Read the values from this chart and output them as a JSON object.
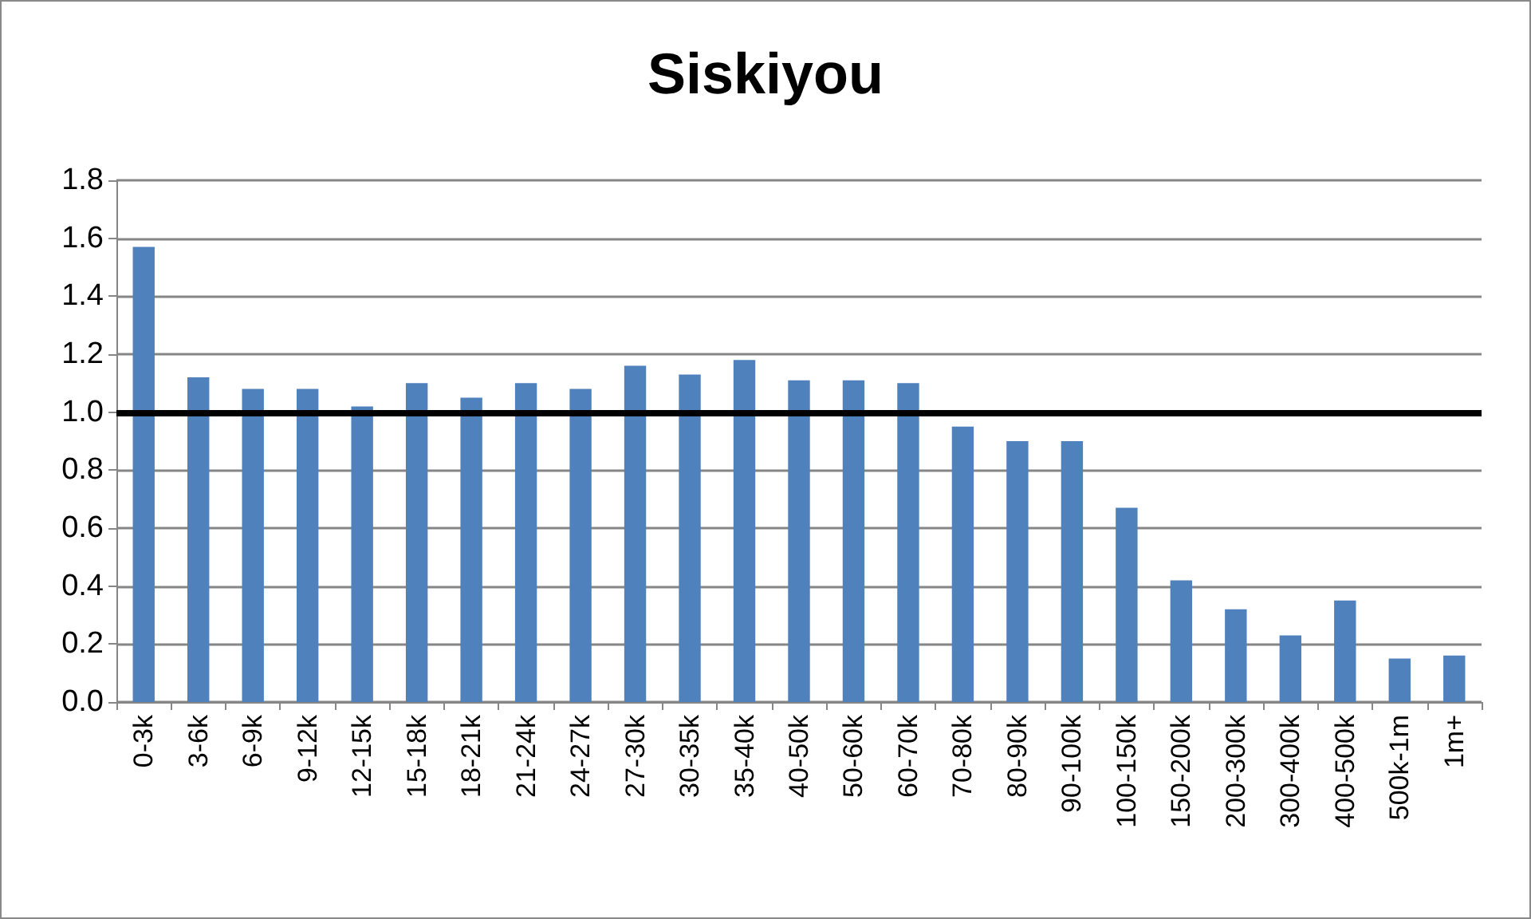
{
  "chart_data": {
    "type": "bar",
    "title": "Siskiyou",
    "categories": [
      "0-3k",
      "3-6k",
      "6-9k",
      "9-12k",
      "12-15k",
      "15-18k",
      "18-21k",
      "21-24k",
      "24-27k",
      "27-30k",
      "30-35k",
      "35-40k",
      "40-50k",
      "50-60k",
      "60-70k",
      "70-80k",
      "80-90k",
      "90-100k",
      "100-150k",
      "150-200k",
      "200-300k",
      "300-400k",
      "400-500k",
      "500k-1m",
      "1m+"
    ],
    "values": [
      1.57,
      1.12,
      1.08,
      1.08,
      1.02,
      1.1,
      1.05,
      1.1,
      1.08,
      1.16,
      1.13,
      1.18,
      1.11,
      1.11,
      1.1,
      0.95,
      0.9,
      0.9,
      0.67,
      0.42,
      0.32,
      0.23,
      0.35,
      0.15,
      0.16
    ],
    "color": "#4f81bd",
    "ylim": [
      0,
      1.8
    ],
    "yticks": [
      {
        "value": 0,
        "label": "0.0"
      },
      {
        "value": 0.2,
        "label": "0.2"
      },
      {
        "value": 0.4,
        "label": "0.4"
      },
      {
        "value": 0.6,
        "label": "0.6"
      },
      {
        "value": 0.8,
        "label": "0.8"
      },
      {
        "value": 1,
        "label": "1.0"
      },
      {
        "value": 1.2,
        "label": "1.2"
      },
      {
        "value": 1.4,
        "label": "1.4"
      },
      {
        "value": 1.6,
        "label": "1.6"
      },
      {
        "value": 1.8,
        "label": "1.8"
      }
    ],
    "ref_lines": [
      {
        "axis": "y",
        "value": 1,
        "color": "#000000",
        "line_style": "solid"
      }
    ],
    "grid": "y"
  }
}
